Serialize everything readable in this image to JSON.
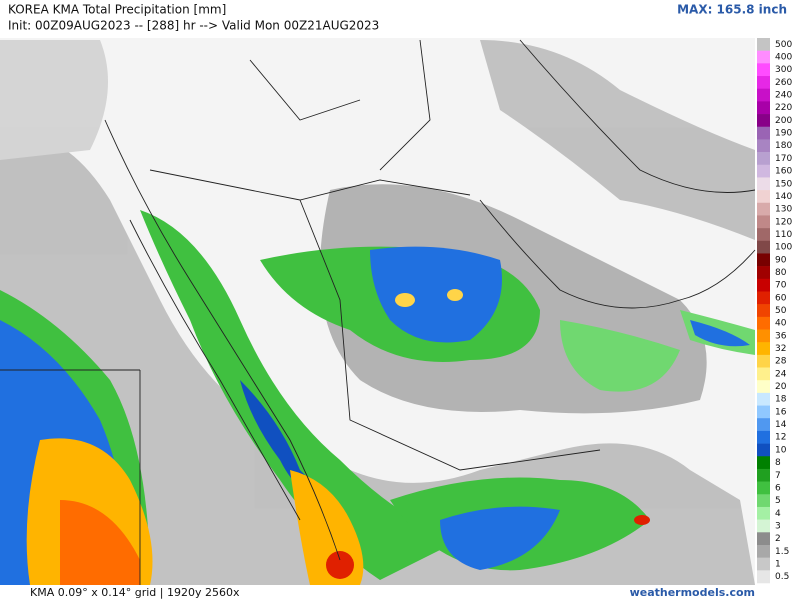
{
  "header": {
    "title": "KOREA KMA Total Precipitation [mm]",
    "init": "Init: 00Z09AUG2023 -- [288] hr --> Valid Mon 00Z21AUG2023",
    "max": "MAX: 165.8 inch"
  },
  "legend": {
    "items": [
      {
        "label": "500",
        "color": "#c4c4c4"
      },
      {
        "label": "400",
        "color": "#ff8cff"
      },
      {
        "label": "300",
        "color": "#ff4cff"
      },
      {
        "label": "260",
        "color": "#e628e6"
      },
      {
        "label": "240",
        "color": "#c810c8"
      },
      {
        "label": "220",
        "color": "#a800a8"
      },
      {
        "label": "200",
        "color": "#880088"
      },
      {
        "label": "190",
        "color": "#9a64b4"
      },
      {
        "label": "180",
        "color": "#a884c2"
      },
      {
        "label": "170",
        "color": "#b8a0d0"
      },
      {
        "label": "160",
        "color": "#d0b8e0"
      },
      {
        "label": "150",
        "color": "#ecdce8"
      },
      {
        "label": "140",
        "color": "#f0d2d2"
      },
      {
        "label": "130",
        "color": "#d8aaaa"
      },
      {
        "label": "120",
        "color": "#c08888"
      },
      {
        "label": "110",
        "color": "#a06868"
      },
      {
        "label": "100",
        "color": "#804848"
      },
      {
        "label": "90",
        "color": "#780000"
      },
      {
        "label": "80",
        "color": "#a00000"
      },
      {
        "label": "70",
        "color": "#c80000"
      },
      {
        "label": "60",
        "color": "#e02000"
      },
      {
        "label": "50",
        "color": "#f04400"
      },
      {
        "label": "40",
        "color": "#ff6c00"
      },
      {
        "label": "36",
        "color": "#ff9000"
      },
      {
        "label": "32",
        "color": "#ffb400"
      },
      {
        "label": "28",
        "color": "#ffd448"
      },
      {
        "label": "24",
        "color": "#fff08c"
      },
      {
        "label": "20",
        "color": "#ffffc8"
      },
      {
        "label": "18",
        "color": "#c8e8ff"
      },
      {
        "label": "16",
        "color": "#90c8ff"
      },
      {
        "label": "14",
        "color": "#5098f0"
      },
      {
        "label": "12",
        "color": "#2070e0"
      },
      {
        "label": "10",
        "color": "#1050c0"
      },
      {
        "label": "8",
        "color": "#008000"
      },
      {
        "label": "7",
        "color": "#20a020"
      },
      {
        "label": "6",
        "color": "#40c040"
      },
      {
        "label": "5",
        "color": "#70d870"
      },
      {
        "label": "4",
        "color": "#a4f0a4"
      },
      {
        "label": "3",
        "color": "#d4f4d4"
      },
      {
        "label": "2",
        "color": "#8c8c8c"
      },
      {
        "label": "1.5",
        "color": "#a8a8a8"
      },
      {
        "label": "1",
        "color": "#c8c8c8"
      },
      {
        "label": "0.5",
        "color": "#e6e6e6"
      }
    ]
  },
  "footer": {
    "grid": "KMA 0.09° x 0.14° grid | 1920y 2560x",
    "site": "weathermodels.com"
  }
}
